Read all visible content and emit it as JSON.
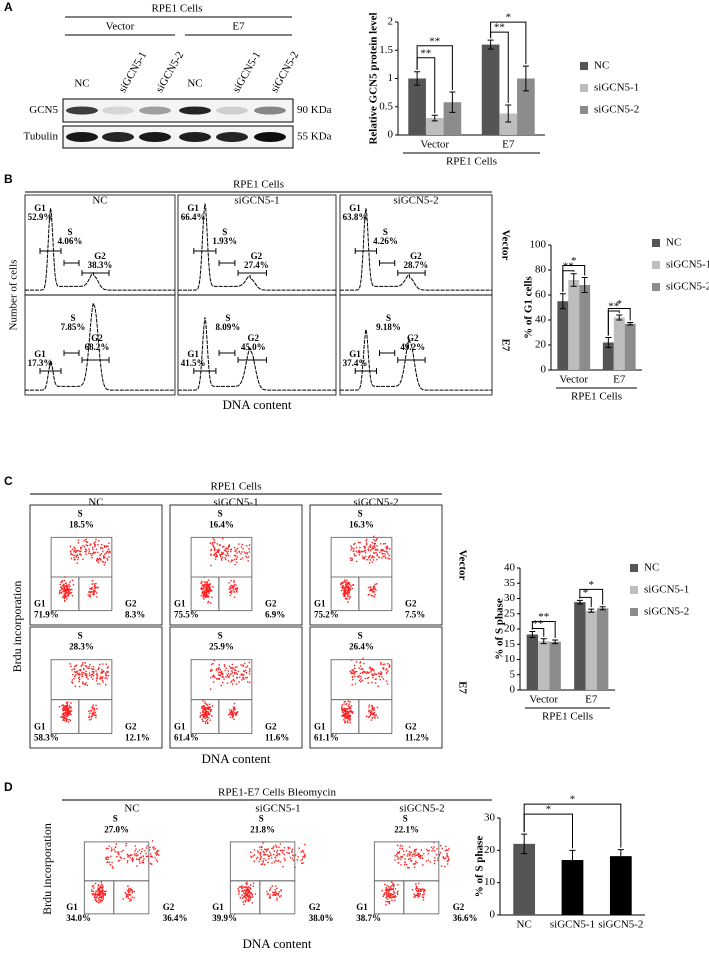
{
  "panel_letters": [
    "A",
    "B",
    "C",
    "D"
  ],
  "panel_a": {
    "title": "RPE1 Cells",
    "groups": [
      "Vector",
      "E7"
    ],
    "lanes": [
      "NC",
      "siGCN5-1",
      "siGCN5-2",
      "NC",
      "siGCN5-1",
      "siGCN5-2"
    ],
    "rows": [
      {
        "label": "GCN5",
        "size": "90 KDa"
      },
      {
        "label": "Tubulin",
        "size": "55 KDa"
      }
    ]
  },
  "panel_b": {
    "title": "RPE1 Cells",
    "columns": [
      "NC",
      "siGCN5-1",
      "siGCN5-2"
    ],
    "y_label": "Number of cells",
    "x_label": "DNA content",
    "gates": [
      "G1",
      "S",
      "G2"
    ],
    "rows": [
      {
        "label": "Vector",
        "plots": [
          [
            "52.9%",
            "4.06%",
            "38.3%"
          ],
          [
            "66.4%",
            "1.93%",
            "27.4%"
          ],
          [
            "63.8%",
            "4.26%",
            "28.7%"
          ]
        ]
      },
      {
        "label": "E7",
        "plots": [
          [
            "17.3%",
            "7.85%",
            "68.2%"
          ],
          [
            "41.5%",
            "8.09%",
            "45.0%"
          ],
          [
            "37.4%",
            "9.18%",
            "49.2%"
          ]
        ]
      }
    ]
  },
  "panel_c": {
    "title": "RPE1 Cells",
    "columns": [
      "NC",
      "siGCN5-1",
      "siGCN5-2"
    ],
    "y_label": "Brdu incorporation",
    "x_label": "DNA content",
    "gates": [
      "G1",
      "S",
      "G2"
    ],
    "rows": [
      {
        "label": "Vector",
        "plots": [
          [
            "71.9%",
            "18.5%",
            "8.3%"
          ],
          [
            "75.5%",
            "16.4%",
            "6.9%"
          ],
          [
            "75.2%",
            "16.3%",
            "7.5%"
          ]
        ]
      },
      {
        "label": "E7",
        "plots": [
          [
            "58.3%",
            "28.3%",
            "12.1%"
          ],
          [
            "61.4%",
            "25.9%",
            "11.6%"
          ],
          [
            "61.1%",
            "26.4%",
            "11.2%"
          ]
        ]
      }
    ]
  },
  "panel_d": {
    "title": "RPE1-E7 Cells Bleomycin",
    "columns": [
      "NC",
      "siGCN5-1",
      "siGCN5-2"
    ],
    "y_label": "Brdu incorporation",
    "x_label": "DNA content",
    "gates": [
      "G1",
      "S",
      "G2"
    ],
    "rows": [
      {
        "plots": [
          [
            "34.0%",
            "27.0%",
            "36.4%"
          ],
          [
            "39.9%",
            "21.8%",
            "38.0%"
          ],
          [
            "38.7%",
            "22.1%",
            "36.6%"
          ]
        ]
      }
    ]
  },
  "chart_data": [
    {
      "type": "bar",
      "y_label": "Relative GCN5 protein level",
      "x_label": "RPE1 Cells",
      "categories": [
        "Vector",
        "E7"
      ],
      "series": [
        {
          "name": "NC",
          "color": "#555555",
          "values": [
            1.0,
            1.6
          ],
          "errors": [
            0.12,
            0.08
          ]
        },
        {
          "name": "siGCN5-1",
          "color": "#bdbdbd",
          "values": [
            0.3,
            0.38
          ],
          "errors": [
            0.05,
            0.15
          ]
        },
        {
          "name": "siGCN5-2",
          "color": "#8c8c8c",
          "values": [
            0.58,
            1.0
          ],
          "errors": [
            0.18,
            0.22
          ]
        }
      ],
      "ylim": [
        0,
        2
      ],
      "yticks": [
        0,
        0.5,
        1,
        1.5,
        2
      ],
      "significance": [
        "**",
        "**",
        "**",
        "*"
      ]
    },
    {
      "type": "bar",
      "y_label": "% of G1 cells",
      "x_label": "RPE1 Cells",
      "categories": [
        "Vector",
        "E7"
      ],
      "series": [
        {
          "name": "NC",
          "color": "#555555",
          "values": [
            55,
            22
          ],
          "errors": [
            6,
            4
          ]
        },
        {
          "name": "siGCN5-1",
          "color": "#bdbdbd",
          "values": [
            72,
            42
          ],
          "errors": [
            5,
            2
          ]
        },
        {
          "name": "siGCN5-2",
          "color": "#8c8c8c",
          "values": [
            68,
            37
          ],
          "errors": [
            6,
            1
          ]
        }
      ],
      "ylim": [
        0,
        100
      ],
      "yticks": [
        0,
        20,
        40,
        60,
        80,
        100
      ],
      "significance": [
        "**",
        "*",
        "**",
        "*"
      ]
    },
    {
      "type": "bar",
      "y_label": "% of S phase",
      "x_label": "RPE1 Cells",
      "categories": [
        "Vector",
        "E7"
      ],
      "series": [
        {
          "name": "NC",
          "color": "#555555",
          "values": [
            18.2,
            28.8
          ],
          "errors": [
            1,
            0.6
          ]
        },
        {
          "name": "siGCN5-1",
          "color": "#bdbdbd",
          "values": [
            16,
            26
          ],
          "errors": [
            0.8,
            0.5
          ]
        },
        {
          "name": "siGCN5-2",
          "color": "#8c8c8c",
          "values": [
            15.8,
            26.8
          ],
          "errors": [
            0.6,
            0.5
          ]
        }
      ],
      "ylim": [
        0,
        40
      ],
      "yticks": [
        0,
        5,
        10,
        15,
        20,
        25,
        30,
        35,
        40
      ],
      "significance": [
        "**",
        "**",
        "*",
        "*"
      ]
    },
    {
      "type": "bar",
      "y_label": "% of S phase",
      "categories": [
        "NC",
        "siGCN5-1",
        "siGCN5-2"
      ],
      "values": [
        22,
        17,
        18.2
      ],
      "errors": [
        3,
        3,
        2
      ],
      "colors": [
        "#555555",
        "#000000",
        "#000000"
      ],
      "ylim": [
        0,
        30
      ],
      "yticks": [
        0,
        10,
        20,
        30
      ],
      "significance": [
        "*",
        "*"
      ]
    }
  ]
}
